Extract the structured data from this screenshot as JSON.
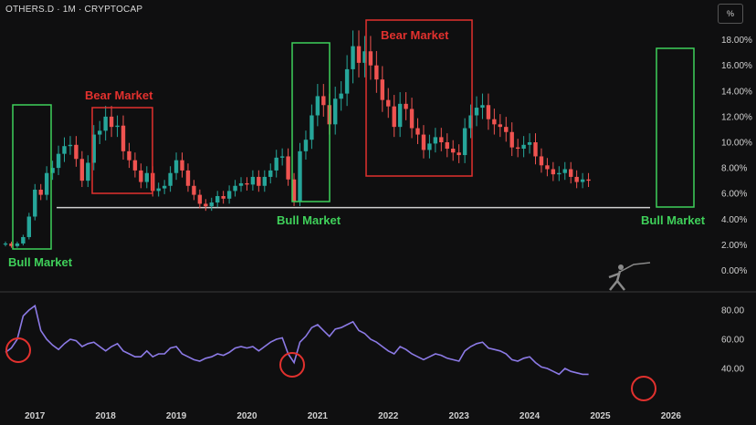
{
  "header": {
    "symbol_line": "OTHERS.D · 1M · CRYPTOCAP",
    "percent_button": "%"
  },
  "zones": {
    "bull1": "Bull Market",
    "bear1": "Bear Market",
    "bull2": "Bull Market",
    "bear2": "Bear Market",
    "bull3": "Bull Market"
  },
  "colors": {
    "up": "#26a69a",
    "down": "#ef5350",
    "bull_zone": "#3fd05a",
    "bear_zone": "#e2312e",
    "rsi_line": "#8c7ae6",
    "support_line": "#d0d0d0",
    "marker": "#e2312e"
  },
  "chart_data": {
    "type": "candlestick",
    "panes": [
      "price",
      "rsi"
    ],
    "y_ticks_price": [
      "18.00%",
      "16.00%",
      "14.00%",
      "12.00%",
      "10.00%",
      "8.00%",
      "6.00%",
      "4.00%",
      "2.00%",
      "0.00%"
    ],
    "y_ticks_rsi": [
      "80.00",
      "60.00",
      "40.00"
    ],
    "x_ticks": [
      "2017",
      "2018",
      "2019",
      "2020",
      "2021",
      "2022",
      "2023",
      "2024",
      "2025",
      "2026"
    ],
    "price_ylim": [
      0,
      18.8
    ],
    "rsi_ylim": [
      30,
      90
    ],
    "support_level": 4.9,
    "close_percent": [
      2.1,
      1.9,
      2.1,
      2.6,
      4.2,
      6.3,
      5.9,
      7.6,
      8.0,
      9.1,
      9.7,
      9.8,
      8.7,
      7.0,
      8.4,
      10.6,
      10.9,
      12.0,
      11.2,
      11.3,
      9.3,
      8.6,
      7.8,
      6.9,
      7.6,
      6.2,
      6.4,
      6.6,
      7.6,
      8.6,
      7.8,
      6.6,
      5.9,
      5.2,
      5.0,
      5.3,
      5.8,
      5.6,
      6.2,
      6.6,
      6.8,
      6.7,
      7.3,
      6.6,
      7.3,
      7.8,
      8.8,
      8.9,
      7.1,
      5.4,
      9.3,
      10.2,
      12.1,
      13.6,
      12.9,
      11.4,
      13.4,
      13.8,
      15.7,
      17.5,
      16.2,
      17.1,
      16.0,
      14.9,
      13.3,
      12.8,
      11.2,
      13.0,
      12.6,
      11.1,
      10.6,
      9.4,
      9.9,
      10.4,
      10.0,
      9.5,
      9.2,
      9.0,
      11.1,
      12.1,
      12.7,
      12.9,
      11.8,
      11.4,
      11.2,
      10.8,
      9.6,
      9.5,
      9.8,
      10.0,
      8.9,
      8.2,
      7.9,
      7.5,
      7.6,
      7.9,
      7.3,
      6.9,
      7.1,
      7.0
    ],
    "rsi": [
      51,
      54,
      60,
      76,
      80,
      83,
      66,
      60,
      56,
      53,
      57,
      60,
      59,
      55,
      57,
      58,
      55,
      52,
      55,
      57,
      52,
      50,
      48,
      48,
      52,
      48,
      50,
      50,
      54,
      55,
      50,
      48,
      46,
      45,
      47,
      48,
      50,
      49,
      51,
      54,
      55,
      54,
      55,
      52,
      55,
      58,
      60,
      61,
      50,
      44,
      58,
      62,
      68,
      70,
      66,
      62,
      67,
      68,
      70,
      72,
      66,
      64,
      60,
      58,
      55,
      52,
      50,
      55,
      53,
      50,
      48,
      46,
      48,
      50,
      49,
      47,
      46,
      45,
      52,
      55,
      57,
      58,
      54,
      53,
      52,
      50,
      46,
      45,
      47,
      48,
      44,
      41,
      40,
      38,
      36,
      40,
      38,
      37,
      36,
      36
    ],
    "x_start": "2016-08",
    "interval": "1M"
  }
}
